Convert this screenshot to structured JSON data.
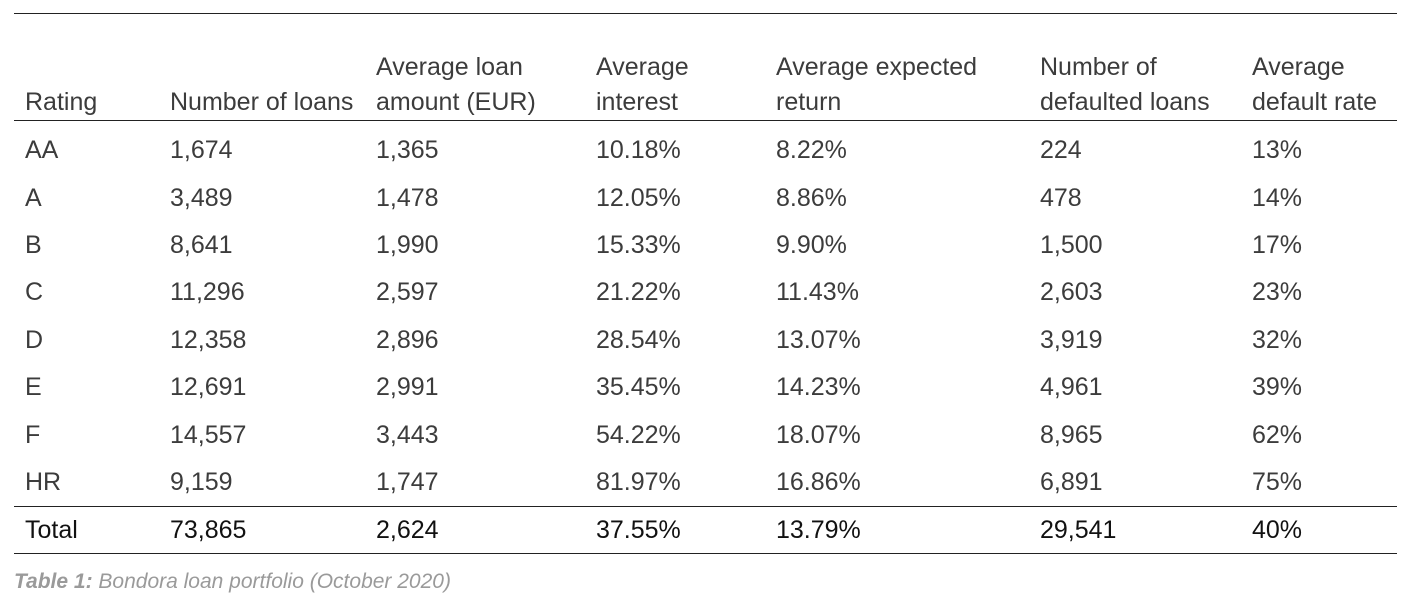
{
  "table": {
    "headers": [
      "Rating",
      "Number of loans",
      "Average loan amount (EUR)",
      "Average interest",
      "Average expected return",
      "Number of defaulted loans",
      "Average default rate"
    ],
    "rows": [
      [
        "AA",
        "1,674",
        "1,365",
        "10.18%",
        "8.22%",
        "224",
        "13%"
      ],
      [
        "A",
        "3,489",
        "1,478",
        "12.05%",
        "8.86%",
        "478",
        "14%"
      ],
      [
        "B",
        "8,641",
        "1,990",
        "15.33%",
        "9.90%",
        "1,500",
        "17%"
      ],
      [
        "C",
        "11,296",
        "2,597",
        "21.22%",
        "11.43%",
        "2,603",
        "23%"
      ],
      [
        "D",
        "12,358",
        "2,896",
        "28.54%",
        "13.07%",
        "3,919",
        "32%"
      ],
      [
        "E",
        "12,691",
        "2,991",
        "35.45%",
        "14.23%",
        "4,961",
        "39%"
      ],
      [
        "F",
        "14,557",
        "3,443",
        "54.22%",
        "18.07%",
        "8,965",
        "62%"
      ],
      [
        "HR",
        "9,159",
        "1,747",
        "81.97%",
        "16.86%",
        "6,891",
        "75%"
      ]
    ],
    "total": [
      "Total",
      "73,865",
      "2,624",
      "37.55%",
      "13.79%",
      "29,541",
      "40%"
    ]
  },
  "caption": {
    "label": "Table 1:",
    "text": " Bondora loan portfolio (October 2020)"
  }
}
